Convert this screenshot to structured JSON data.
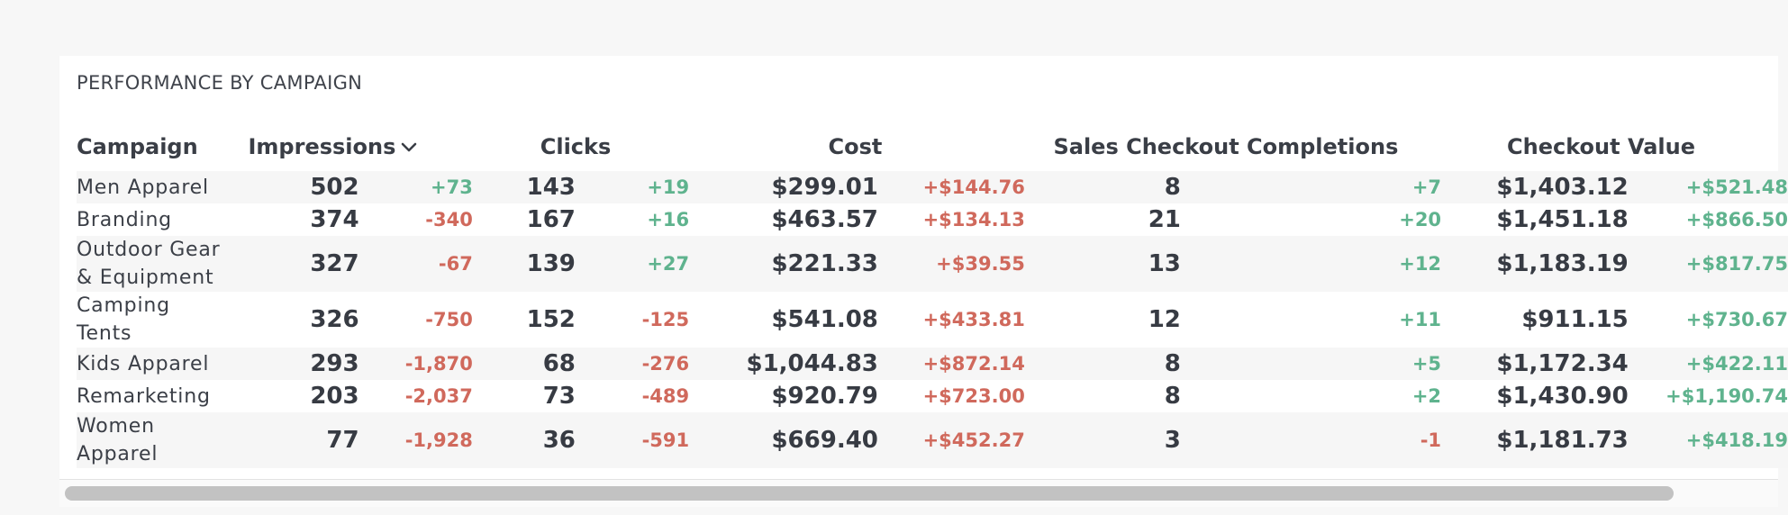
{
  "panel": {
    "title": "PERFORMANCE BY CAMPAIGN"
  },
  "columns": {
    "campaign": "Campaign",
    "impressions": "Impressions",
    "clicks": "Clicks",
    "cost": "Cost",
    "completions": "Sales Checkout Completions",
    "checkout_value": "Checkout Value"
  },
  "sort": {
    "column": "impressions",
    "icon": "chevron-down-icon"
  },
  "colors": {
    "positive": "#5fb38e",
    "negative": "#d0695c",
    "text": "#3b3f47"
  },
  "rows": [
    {
      "campaign": "Men Apparel",
      "impressions": "502",
      "impressions_delta": "+73",
      "clicks": "143",
      "clicks_delta": "+19",
      "cost": "$299.01",
      "cost_delta": "+$144.76",
      "completions": "8",
      "completions_delta": "+7",
      "checkout_value": "$1,403.12",
      "checkout_value_delta": "+$521.48"
    },
    {
      "campaign": "Branding",
      "impressions": "374",
      "impressions_delta": "-340",
      "clicks": "167",
      "clicks_delta": "+16",
      "cost": "$463.57",
      "cost_delta": "+$134.13",
      "completions": "21",
      "completions_delta": "+20",
      "checkout_value": "$1,451.18",
      "checkout_value_delta": "+$866.50"
    },
    {
      "campaign": "Outdoor Gear & Equipment",
      "impressions": "327",
      "impressions_delta": "-67",
      "clicks": "139",
      "clicks_delta": "+27",
      "cost": "$221.33",
      "cost_delta": "+$39.55",
      "completions": "13",
      "completions_delta": "+12",
      "checkout_value": "$1,183.19",
      "checkout_value_delta": "+$817.75"
    },
    {
      "campaign": "Camping Tents",
      "impressions": "326",
      "impressions_delta": "-750",
      "clicks": "152",
      "clicks_delta": "-125",
      "cost": "$541.08",
      "cost_delta": "+$433.81",
      "completions": "12",
      "completions_delta": "+11",
      "checkout_value": "$911.15",
      "checkout_value_delta": "+$730.67"
    },
    {
      "campaign": "Kids Apparel",
      "impressions": "293",
      "impressions_delta": "-1,870",
      "clicks": "68",
      "clicks_delta": "-276",
      "cost": "$1,044.83",
      "cost_delta": "+$872.14",
      "completions": "8",
      "completions_delta": "+5",
      "checkout_value": "$1,172.34",
      "checkout_value_delta": "+$422.11"
    },
    {
      "campaign": "Remarketing",
      "impressions": "203",
      "impressions_delta": "-2,037",
      "clicks": "73",
      "clicks_delta": "-489",
      "cost": "$920.79",
      "cost_delta": "+$723.00",
      "completions": "8",
      "completions_delta": "+2",
      "checkout_value": "$1,430.90",
      "checkout_value_delta": "+$1,190.74"
    },
    {
      "campaign": "Women Apparel",
      "impressions": "77",
      "impressions_delta": "-1,928",
      "clicks": "36",
      "clicks_delta": "-591",
      "cost": "$669.40",
      "cost_delta": "+$452.27",
      "completions": "3",
      "completions_delta": "-1",
      "checkout_value": "$1,181.73",
      "checkout_value_delta": "+$418.19"
    }
  ]
}
